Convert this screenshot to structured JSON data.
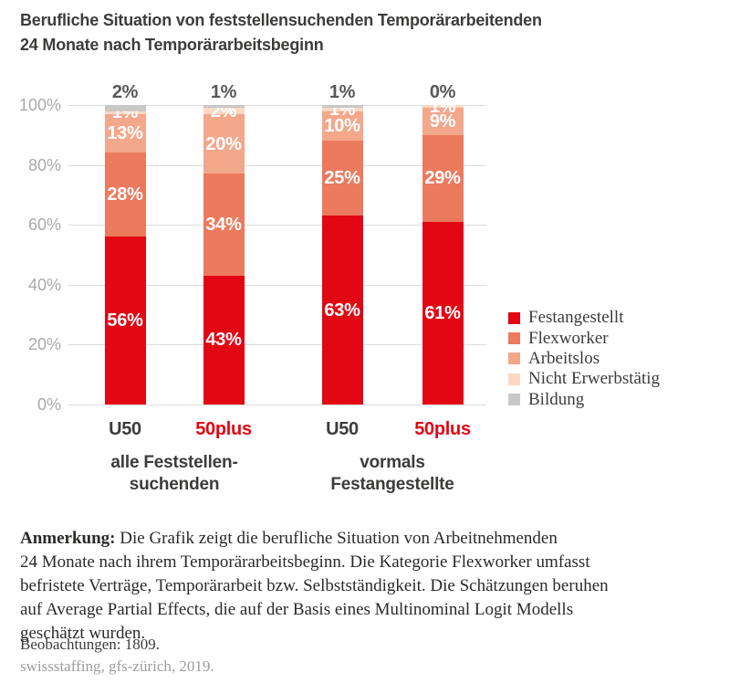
{
  "title": {
    "line1": "Berufliche Situation von feststellensuchenden Temporärarbeitenden",
    "line2": "24 Monate nach Temporärarbeitsbeginn"
  },
  "colors": {
    "red": "#e30613",
    "dark": "#3c3c3b",
    "above_label": "#575756",
    "axis_gray": "#a9a9a8",
    "grid": "#dcdcdc",
    "source_gray": "#9d9d9c"
  },
  "chart_data": {
    "type": "bar",
    "stacked": true,
    "title": "Berufliche Situation von feststellensuchenden Temporärarbeitenden 24 Monate nach Temporärarbeitsbeginn",
    "categories": [
      {
        "label": "U50",
        "highlight": false
      },
      {
        "label": "50plus",
        "highlight": true
      },
      {
        "label": "U50",
        "highlight": false
      },
      {
        "label": "50plus",
        "highlight": true
      }
    ],
    "groups": [
      {
        "line1": "alle Feststellen-",
        "line2": "suchenden"
      },
      {
        "line1": "vormals",
        "line2": "Festangestellte"
      }
    ],
    "series": [
      {
        "name": "Festangestellt",
        "color": "#e30613",
        "values": [
          56,
          43,
          63,
          61
        ]
      },
      {
        "name": "Flexworker",
        "color": "#ec7a5e",
        "values": [
          28,
          34,
          25,
          29
        ]
      },
      {
        "name": "Arbeitslos",
        "color": "#f3a78b",
        "values": [
          13,
          20,
          10,
          9
        ]
      },
      {
        "name": "Nicht Erwerbstätig",
        "color": "#fad8c3",
        "values": [
          1,
          2,
          1,
          1
        ]
      },
      {
        "name": "Bildung",
        "color": "#c8c8c7",
        "values": [
          2,
          1,
          1,
          0
        ]
      }
    ],
    "y_ticks": [
      "100%",
      "80%",
      "60%",
      "40%",
      "20%",
      "0%"
    ],
    "ylim": [
      0,
      100
    ],
    "grid": true,
    "legend_position": "right",
    "value_labels": "inside, Bildung value shown above bar"
  },
  "annotation": {
    "label": "Anmerkung:",
    "lines": [
      "Die Grafik zeigt die berufliche Situation von Arbeitnehmenden",
      "24 Monate nach ihrem Temporärarbeitsbeginn. Die Kategorie Flexworker umfasst",
      "befristete Verträge, Temporärarbeit bzw. Selbstständigkeit. Die Schätzungen beruhen",
      "auf Average Partial Effects, die auf der Basis eines Multinominal Logit Modells",
      "geschätzt wurden."
    ]
  },
  "observations": "Beobachtungen: 1809.",
  "source": "swissstaffing, gfs-zürich, 2019."
}
